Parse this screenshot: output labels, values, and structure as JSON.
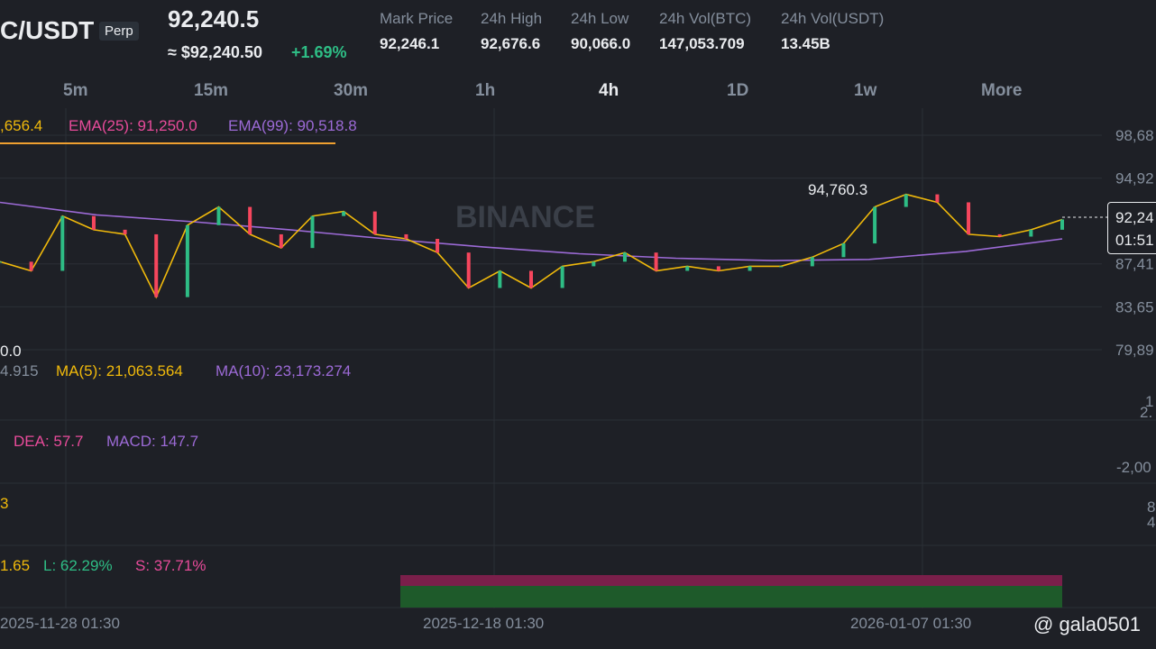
{
  "header": {
    "symbol": "C/USDT",
    "tag": "Perp",
    "last_price": "92,240.5",
    "usd_price": "≈ $92,240.50",
    "change": "+1.69%",
    "stats": [
      {
        "label": "Mark Price",
        "value": "92,246.1"
      },
      {
        "label": "24h High",
        "value": "92,676.6"
      },
      {
        "label": "24h Low",
        "value": "90,066.0"
      },
      {
        "label": "24h Vol(BTC)",
        "value": "147,053.709"
      },
      {
        "label": "24h Vol(USDT)",
        "value": "13.45B"
      }
    ]
  },
  "intervals": [
    "5m",
    "15m",
    "30m",
    "1h",
    "4h",
    "1D",
    "1w",
    "More"
  ],
  "legend": {
    "ema7": ",656.4",
    "ema25": "EMA(25): 91,250.0",
    "ema99": "EMA(99): 90,518.8"
  },
  "price_chart": {
    "ylim": [
      79890,
      98680
    ],
    "yticks": [
      {
        "value": 98680,
        "label": "98,68"
      },
      {
        "value": 94920,
        "label": "94,92"
      },
      {
        "value": 87410,
        "label": "87,41"
      },
      {
        "value": 83650,
        "label": "83,65"
      },
      {
        "value": 79890,
        "label": "79,89"
      }
    ],
    "closes": [
      87600,
      86800,
      91600,
      90400,
      90000,
      84500,
      90800,
      92400,
      90000,
      88800,
      91600,
      92000,
      90000,
      89600,
      88400,
      85300,
      86800,
      85300,
      87200,
      87600,
      88400,
      86800,
      87200,
      86800,
      87200,
      87200,
      88000,
      89200,
      92400,
      93500,
      92800,
      90000,
      89800,
      90400,
      91300
    ],
    "ema99": [
      92800,
      91700,
      91100,
      90400,
      89600,
      88900,
      88300,
      87900,
      87700,
      87800,
      88500,
      89600
    ],
    "price_tag": "92,24",
    "countdown": "01:51",
    "high_label": "94,760.3",
    "low_label": "0.0",
    "watermark": "BINANCE"
  },
  "volume": {
    "vol": "4.915",
    "ma5": "MA(5): 21,063.564",
    "ma10": "MA(10): 23,173.274",
    "axis_top": "1",
    "axis_bottom": "2."
  },
  "macd": {
    "dea": "DEA: 57.7",
    "macd": "MACD: 147.7",
    "axis": "-2,00"
  },
  "rsi": {
    "label": "3",
    "axis_top": "8",
    "axis_bottom": "4"
  },
  "long_short": {
    "ratio": "1.65",
    "long": "L: 62.29%",
    "short": "S: 37.71%"
  },
  "dates": [
    "2025-11-28 01:30",
    "2025-12-18 01:30",
    "2026-01-07 01:30"
  ],
  "credit": "@ gala0501"
}
